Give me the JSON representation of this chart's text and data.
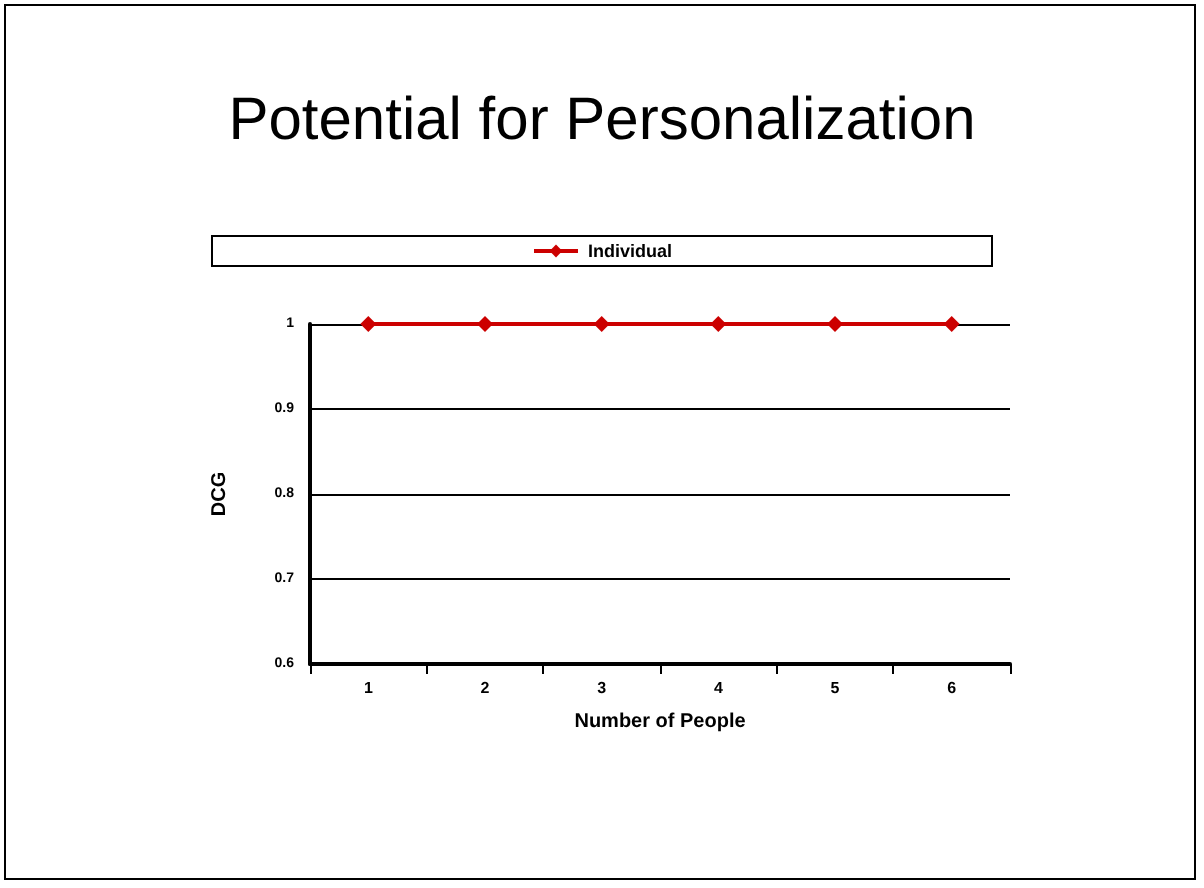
{
  "chart_data": {
    "type": "line",
    "title": "Potential for Personalization",
    "xlabel": "Number of People",
    "ylabel": "DCG",
    "categories": [
      "1",
      "2",
      "3",
      "4",
      "5",
      "6"
    ],
    "series": [
      {
        "name": "Individual",
        "color": "#cc0000",
        "values": [
          1,
          1,
          1,
          1,
          1,
          1
        ]
      }
    ],
    "ylim": [
      0.6,
      1
    ],
    "yticks": [
      0.6,
      0.7,
      0.8,
      0.9,
      1
    ],
    "grid": "y",
    "legend": "top",
    "marker": "diamond",
    "line_style": "solid"
  }
}
